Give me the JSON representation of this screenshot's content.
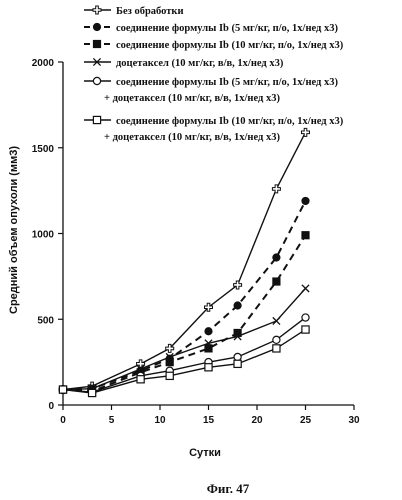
{
  "figure_caption": "Фиг. 47",
  "chart_data": {
    "type": "line",
    "xlabel": "Сутки",
    "ylabel": "Средний объем опухоли (мм3)",
    "xlim": [
      0,
      30
    ],
    "ylim": [
      0,
      2000
    ],
    "x_ticks": [
      0,
      5,
      10,
      15,
      20,
      25,
      30
    ],
    "y_ticks": [
      0,
      500,
      1000,
      1500,
      2000
    ],
    "grid": false,
    "legend_position": "top",
    "series": [
      {
        "name": "Без обработки",
        "line_style": "solid",
        "marker": "plus-open",
        "x": [
          0,
          3,
          8,
          11,
          15,
          18,
          22,
          25
        ],
        "values": [
          90,
          110,
          240,
          330,
          570,
          700,
          1260,
          1590
        ]
      },
      {
        "name": "соединение формулы Ib (5 мг/кг, п/о, 1x/нед x3)",
        "line_style": "dashed",
        "marker": "circle-filled",
        "x": [
          0,
          3,
          8,
          11,
          15,
          18,
          22,
          25
        ],
        "values": [
          90,
          95,
          200,
          270,
          430,
          580,
          860,
          1190
        ]
      },
      {
        "name": "соединение формулы Ib (10 мг/кг, п/о, 1x/нед x3)",
        "line_style": "dashed",
        "marker": "square-filled",
        "x": [
          0,
          3,
          8,
          11,
          15,
          18,
          22,
          25
        ],
        "values": [
          90,
          80,
          190,
          250,
          330,
          420,
          720,
          990
        ]
      },
      {
        "name": "доцетаксел (10 мг/кг, в/в, 1x/нед x3)",
        "line_style": "solid",
        "marker": "x",
        "x": [
          0,
          3,
          8,
          11,
          15,
          18,
          22,
          25
        ],
        "values": [
          90,
          95,
          210,
          280,
          360,
          400,
          490,
          680
        ]
      },
      {
        "name": "соединение формулы Ib (5 мг/кг, п/о, 1x/нед x3)\n+ доцетаксел (10 мг/кг, в/в, 1x/нед x3)",
        "line_style": "solid",
        "marker": "circle-open",
        "x": [
          0,
          3,
          8,
          11,
          15,
          18,
          22,
          25
        ],
        "values": [
          90,
          75,
          170,
          200,
          250,
          280,
          380,
          510
        ]
      },
      {
        "name": "соединение формулы Ib (10 мг/кг, п/о, 1x/нед x3)\n+ доцетаксел (10 мг/кг, в/в, 1x/нед x3)",
        "line_style": "solid",
        "marker": "square-open",
        "x": [
          0,
          3,
          8,
          11,
          15,
          18,
          22,
          25
        ],
        "values": [
          90,
          70,
          150,
          170,
          220,
          240,
          330,
          440
        ]
      }
    ]
  }
}
